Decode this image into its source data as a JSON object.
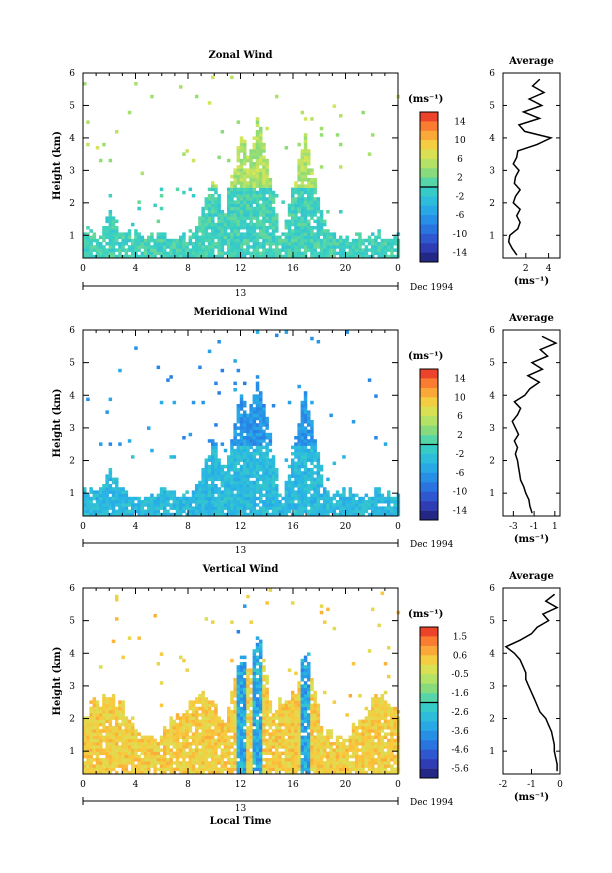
{
  "chart_data": [
    {
      "type": "heatmap",
      "title": "Zonal Wind",
      "xlabel": "",
      "ylabel": "Height (km)",
      "xlim": [
        0,
        24
      ],
      "ylim": [
        0.3,
        6
      ],
      "xticks": [
        "0",
        "4",
        "8",
        "12",
        "16",
        "20",
        "0"
      ],
      "yticks": [
        "1",
        "2",
        "3",
        "4",
        "5",
        "6"
      ],
      "date_label": "13",
      "date_suffix": "Dec 1994",
      "colorbar": {
        "unit": "(ms⁻¹)",
        "ticks": [
          "14",
          "10",
          "6",
          "2",
          "-2",
          "-6",
          "-10",
          "-14"
        ],
        "min": -16,
        "max": 16
      },
      "profile": {
        "title": "Average",
        "xlabel": "(ms⁻¹)",
        "xticks": [
          "2",
          "4"
        ],
        "xlim": [
          0,
          5
        ],
        "heights": [
          0.4,
          0.6,
          0.8,
          1.0,
          1.2,
          1.4,
          1.6,
          1.8,
          2.0,
          2.2,
          2.4,
          2.6,
          2.8,
          3.0,
          3.2,
          3.4,
          3.6,
          3.8,
          4.0,
          4.2,
          4.4,
          4.6,
          4.8,
          5.0,
          5.2,
          5.4,
          5.6,
          5.8
        ],
        "values": [
          1.2,
          0.8,
          0.5,
          0.6,
          1.3,
          1.5,
          1.2,
          1.5,
          0.9,
          1.1,
          1.5,
          1.0,
          1.1,
          1.4,
          0.9,
          1.2,
          1.3,
          3.0,
          4.2,
          1.9,
          1.4,
          3.2,
          1.8,
          3.4,
          2.3,
          3.6,
          2.6,
          3.2
        ]
      }
    },
    {
      "type": "heatmap",
      "title": "Meridional Wind",
      "xlabel": "",
      "ylabel": "Height (km)",
      "xlim": [
        0,
        24
      ],
      "ylim": [
        0.3,
        6
      ],
      "xticks": [
        "0",
        "4",
        "8",
        "12",
        "16",
        "20",
        "0"
      ],
      "yticks": [
        "1",
        "2",
        "3",
        "4",
        "5",
        "6"
      ],
      "date_label": "13",
      "date_suffix": "Dec 1994",
      "colorbar": {
        "unit": "(ms⁻¹)",
        "ticks": [
          "14",
          "10",
          "6",
          "2",
          "-2",
          "-6",
          "-10",
          "-14"
        ],
        "min": -16,
        "max": 16
      },
      "profile": {
        "title": "Average",
        "xlabel": "(ms⁻¹)",
        "xticks": [
          "-3",
          "-1",
          "1"
        ],
        "xlim": [
          -4,
          1.5
        ],
        "heights": [
          0.4,
          0.6,
          0.8,
          1.0,
          1.2,
          1.4,
          1.6,
          1.8,
          2.0,
          2.2,
          2.4,
          2.6,
          2.8,
          3.0,
          3.2,
          3.4,
          3.6,
          3.8,
          4.0,
          4.2,
          4.4,
          4.6,
          4.8,
          5.0,
          5.2,
          5.4,
          5.6,
          5.8
        ],
        "values": [
          -1.2,
          -1.4,
          -1.5,
          -1.8,
          -2.0,
          -2.3,
          -2.4,
          -2.5,
          -2.6,
          -2.8,
          -2.6,
          -2.9,
          -2.5,
          -2.8,
          -3.1,
          -2.6,
          -2.3,
          -2.9,
          -1.9,
          -1.4,
          -0.5,
          -1.6,
          -0.2,
          -1.2,
          0.3,
          -0.4,
          1.1,
          -0.2
        ]
      }
    },
    {
      "type": "heatmap",
      "title": "Vertical Wind",
      "xlabel": "Local Time",
      "ylabel": "Height (km)",
      "xlim": [
        0,
        24
      ],
      "ylim": [
        0.3,
        6
      ],
      "xticks": [
        "0",
        "4",
        "8",
        "12",
        "16",
        "20",
        "0"
      ],
      "yticks": [
        "1",
        "2",
        "3",
        "4",
        "5",
        "6"
      ],
      "date_label": "13",
      "date_suffix": "Dec 1994",
      "colorbar": {
        "unit": "(ms⁻¹)",
        "ticks": [
          "1.5",
          "0.6",
          "-0.5",
          "-1.6",
          "-2.6",
          "-3.6",
          "-4.6",
          "-5.6"
        ],
        "min": -6.1,
        "max": 2.0
      },
      "profile": {
        "title": "Average",
        "xlabel": "(ms⁻¹)",
        "xticks": [
          "-2",
          "-1",
          "0"
        ],
        "xlim": [
          -2,
          0
        ],
        "heights": [
          0.4,
          0.6,
          0.8,
          1.0,
          1.2,
          1.4,
          1.6,
          1.8,
          2.0,
          2.2,
          2.4,
          2.6,
          2.8,
          3.0,
          3.2,
          3.4,
          3.6,
          3.8,
          4.0,
          4.2,
          4.4,
          4.6,
          4.8,
          5.0,
          5.2,
          5.4,
          5.6,
          5.8
        ],
        "values": [
          -0.1,
          -0.1,
          -0.15,
          -0.2,
          -0.2,
          -0.25,
          -0.3,
          -0.4,
          -0.5,
          -0.7,
          -0.8,
          -0.9,
          -1.0,
          -1.1,
          -1.2,
          -1.2,
          -1.3,
          -1.4,
          -1.6,
          -1.9,
          -1.4,
          -1.0,
          -0.8,
          -0.4,
          -0.6,
          -0.1,
          -0.5,
          -0.2
        ]
      }
    }
  ]
}
